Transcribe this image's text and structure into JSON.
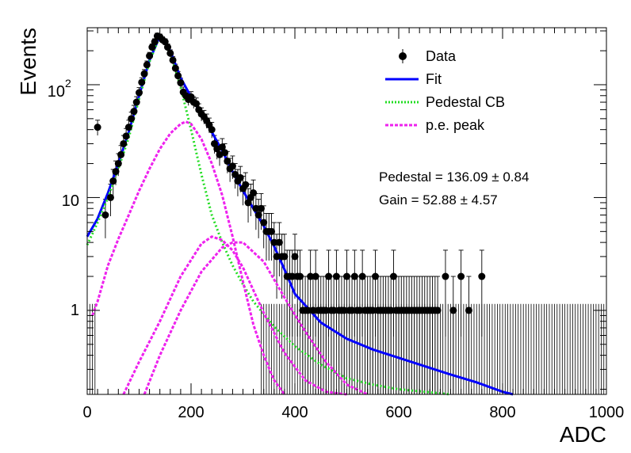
{
  "chart_data": {
    "type": "scatter",
    "title": "",
    "xlabel": "ADC",
    "ylabel": "Events",
    "xlim": [
      0,
      1000
    ],
    "ylim": [
      0.18,
      320
    ],
    "y_scale": "log",
    "grid": false,
    "legend_position": "top-right",
    "x_ticks": [
      {
        "value": 0,
        "label": "0"
      },
      {
        "value": 200,
        "label": "200"
      },
      {
        "value": 400,
        "label": "400"
      },
      {
        "value": 600,
        "label": "600"
      },
      {
        "value": 800,
        "label": "800"
      },
      {
        "value": 1000,
        "label": "1000"
      }
    ],
    "y_ticks": [
      {
        "value": 1,
        "label": "1"
      },
      {
        "value": 10,
        "label": "10"
      },
      {
        "value": 100,
        "label": "10",
        "exponent": "2"
      }
    ],
    "legend": [
      {
        "label": "Data",
        "style": "marker",
        "color": "#000000"
      },
      {
        "label": "Fit",
        "style": "solid",
        "color": "#0000ff"
      },
      {
        "label": "Pedestal CB",
        "style": "dotted",
        "color": "#22dd22"
      },
      {
        "label": "p.e. peak",
        "style": "dashed",
        "color": "#ee22ee"
      }
    ],
    "annotations": [
      {
        "text": "Pedestal = 136.09",
        "pm": "±",
        "err": "0.84"
      },
      {
        "text": "Gain = 52.88",
        "pm": "±",
        "err": "4.57"
      }
    ],
    "data_points": [
      [
        20,
        42
      ],
      [
        35,
        7
      ],
      [
        45,
        10
      ],
      [
        50,
        14
      ],
      [
        55,
        17
      ],
      [
        60,
        20
      ],
      [
        65,
        24
      ],
      [
        70,
        30
      ],
      [
        75,
        35
      ],
      [
        80,
        42
      ],
      [
        85,
        50
      ],
      [
        90,
        58
      ],
      [
        95,
        70
      ],
      [
        100,
        85
      ],
      [
        105,
        105
      ],
      [
        110,
        125
      ],
      [
        115,
        150
      ],
      [
        120,
        180
      ],
      [
        125,
        215
      ],
      [
        130,
        240
      ],
      [
        135,
        270
      ],
      [
        140,
        265
      ],
      [
        145,
        250
      ],
      [
        150,
        240
      ],
      [
        155,
        215
      ],
      [
        160,
        190
      ],
      [
        165,
        165
      ],
      [
        170,
        140
      ],
      [
        175,
        120
      ],
      [
        180,
        104
      ],
      [
        185,
        86
      ],
      [
        190,
        80
      ],
      [
        195,
        74
      ],
      [
        200,
        78
      ],
      [
        205,
        70
      ],
      [
        210,
        68
      ],
      [
        215,
        60
      ],
      [
        220,
        55
      ],
      [
        225,
        52
      ],
      [
        230,
        48
      ],
      [
        235,
        44
      ],
      [
        240,
        40
      ],
      [
        245,
        30
      ],
      [
        250,
        27
      ],
      [
        255,
        24
      ],
      [
        260,
        28
      ],
      [
        265,
        25
      ],
      [
        270,
        21
      ],
      [
        275,
        18
      ],
      [
        280,
        19
      ],
      [
        285,
        16
      ],
      [
        290,
        14
      ],
      [
        295,
        15
      ],
      [
        300,
        12
      ],
      [
        305,
        13
      ],
      [
        310,
        9
      ],
      [
        315,
        10
      ],
      [
        320,
        11
      ],
      [
        325,
        8
      ],
      [
        330,
        7
      ],
      [
        335,
        8
      ],
      [
        340,
        6
      ],
      [
        345,
        5
      ],
      [
        350,
        5
      ],
      [
        355,
        5
      ],
      [
        360,
        4
      ],
      [
        365,
        3
      ],
      [
        370,
        4
      ],
      [
        375,
        3
      ],
      [
        380,
        3
      ],
      [
        385,
        2
      ],
      [
        390,
        2
      ],
      [
        395,
        2
      ],
      [
        400,
        3
      ],
      [
        405,
        2
      ],
      [
        410,
        2
      ],
      [
        415,
        1
      ],
      [
        420,
        1
      ],
      [
        425,
        1
      ],
      [
        430,
        2
      ],
      [
        435,
        1
      ],
      [
        440,
        2
      ],
      [
        445,
        1
      ],
      [
        450,
        1
      ],
      [
        455,
        1
      ],
      [
        460,
        1
      ],
      [
        465,
        2
      ],
      [
        470,
        1
      ],
      [
        475,
        1
      ],
      [
        480,
        2
      ],
      [
        485,
        1
      ],
      [
        490,
        1
      ],
      [
        495,
        1
      ],
      [
        500,
        2
      ],
      [
        505,
        1
      ],
      [
        510,
        1
      ],
      [
        515,
        2
      ],
      [
        520,
        1
      ],
      [
        525,
        1
      ],
      [
        530,
        2
      ],
      [
        535,
        1
      ],
      [
        540,
        1
      ],
      [
        545,
        1
      ],
      [
        550,
        1
      ],
      [
        555,
        2
      ],
      [
        560,
        1
      ],
      [
        565,
        1
      ],
      [
        570,
        1
      ],
      [
        575,
        1
      ],
      [
        580,
        1
      ],
      [
        585,
        1
      ],
      [
        590,
        2
      ],
      [
        595,
        1
      ],
      [
        600,
        1
      ],
      [
        605,
        1
      ],
      [
        610,
        1
      ],
      [
        615,
        1
      ],
      [
        620,
        1
      ],
      [
        625,
        1
      ],
      [
        630,
        1
      ],
      [
        635,
        1
      ],
      [
        640,
        1
      ],
      [
        645,
        1
      ],
      [
        650,
        1
      ],
      [
        655,
        1
      ],
      [
        660,
        1
      ],
      [
        665,
        1
      ],
      [
        670,
        1
      ],
      [
        675,
        1
      ],
      [
        690,
        2
      ],
      [
        705,
        1
      ],
      [
        720,
        2
      ],
      [
        735,
        1
      ],
      [
        760,
        2
      ]
    ],
    "series": [
      {
        "name": "Fit",
        "color": "#0000ff",
        "x": [
          0,
          20,
          40,
          60,
          80,
          100,
          120,
          140,
          160,
          180,
          200,
          220,
          240,
          260,
          280,
          300,
          320,
          340,
          360,
          380,
          400,
          450,
          500,
          550,
          600,
          650,
          700,
          750,
          800,
          820
        ],
        "values": [
          4.5,
          6.5,
          11,
          20,
          38,
          80,
          165,
          270,
          200,
          115,
          78,
          55,
          38,
          26,
          17,
          11.5,
          8,
          5.6,
          3.7,
          2.3,
          1.4,
          0.78,
          0.56,
          0.45,
          0.38,
          0.32,
          0.27,
          0.23,
          0.19,
          0.18
        ]
      },
      {
        "name": "Pedestal CB",
        "color": "#22dd22",
        "x": [
          0,
          20,
          40,
          60,
          80,
          100,
          120,
          140,
          160,
          180,
          200,
          220,
          240,
          260,
          280,
          300,
          320,
          360,
          400,
          450,
          500,
          550,
          600,
          650,
          700
        ],
        "values": [
          3.8,
          6,
          10,
          18,
          34,
          75,
          160,
          270,
          190,
          95,
          40,
          16,
          7,
          4,
          2.5,
          1.7,
          1.2,
          0.72,
          0.48,
          0.33,
          0.25,
          0.22,
          0.2,
          0.19,
          0.18
        ]
      },
      {
        "name": "p.e. peak 1",
        "color": "#ee22ee",
        "x": [
          10,
          20,
          40,
          60,
          80,
          100,
          120,
          140,
          160,
          180,
          190,
          200,
          220,
          240,
          260,
          280,
          300,
          320,
          340,
          360,
          380
        ],
        "values": [
          0.9,
          1.2,
          2.5,
          4.3,
          7,
          11.5,
          18,
          27,
          37,
          45,
          47,
          45,
          33,
          20,
          10.5,
          4.5,
          1.8,
          0.75,
          0.4,
          0.24,
          0.18
        ]
      },
      {
        "name": "p.e. peak 2",
        "color": "#ee22ee",
        "x": [
          70,
          100,
          140,
          180,
          220,
          240,
          260,
          280,
          300,
          340,
          380,
          420,
          460,
          500
        ],
        "values": [
          0.18,
          0.35,
          0.8,
          2,
          3.9,
          4.5,
          4.2,
          3.4,
          2.4,
          0.95,
          0.42,
          0.24,
          0.19,
          0.18
        ]
      },
      {
        "name": "p.e. peak 3",
        "color": "#ee22ee",
        "x": [
          110,
          140,
          180,
          220,
          260,
          280,
          300,
          340,
          380,
          420,
          460,
          500,
          540
        ],
        "values": [
          0.18,
          0.4,
          1,
          2.2,
          3.6,
          4,
          4,
          2.7,
          1.3,
          0.65,
          0.35,
          0.22,
          0.18
        ]
      }
    ]
  }
}
